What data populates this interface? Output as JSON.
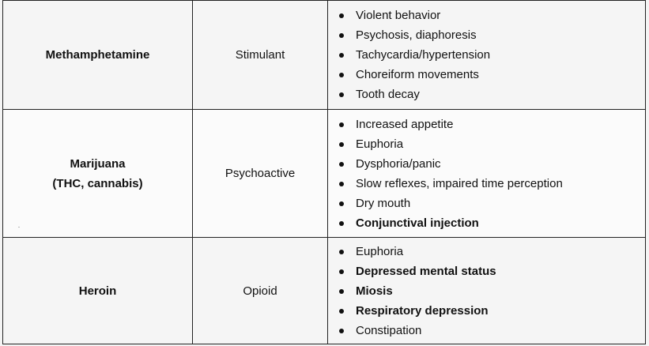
{
  "rows": [
    {
      "drug": [
        "Methamphetamine"
      ],
      "drug_class": "Stimulant",
      "findings": [
        {
          "text": "Violent behavior",
          "bold": false
        },
        {
          "text": "Psychosis, diaphoresis",
          "bold": false
        },
        {
          "text": "Tachycardia/hypertension",
          "bold": false
        },
        {
          "text": "Choreiform movements",
          "bold": false
        },
        {
          "text": "Tooth decay",
          "bold": false
        }
      ]
    },
    {
      "drug": [
        "Marijuana",
        "(THC, cannabis)"
      ],
      "drug_class": "Psychoactive",
      "findings": [
        {
          "text": "Increased appetite",
          "bold": false
        },
        {
          "text": "Euphoria",
          "bold": false
        },
        {
          "text": "Dysphoria/panic",
          "bold": false
        },
        {
          "text": "Slow reflexes, impaired time perception",
          "bold": false
        },
        {
          "text": "Dry mouth",
          "bold": false
        },
        {
          "text": "Conjunctival injection",
          "bold": true
        }
      ]
    },
    {
      "drug": [
        "Heroin"
      ],
      "drug_class": "Opioid",
      "findings": [
        {
          "text": "Euphoria",
          "bold": false
        },
        {
          "text": "Depressed mental status",
          "bold": true
        },
        {
          "text": "Miosis",
          "bold": true
        },
        {
          "text": "Respiratory depression",
          "bold": true
        },
        {
          "text": "Constipation",
          "bold": false
        }
      ]
    }
  ]
}
